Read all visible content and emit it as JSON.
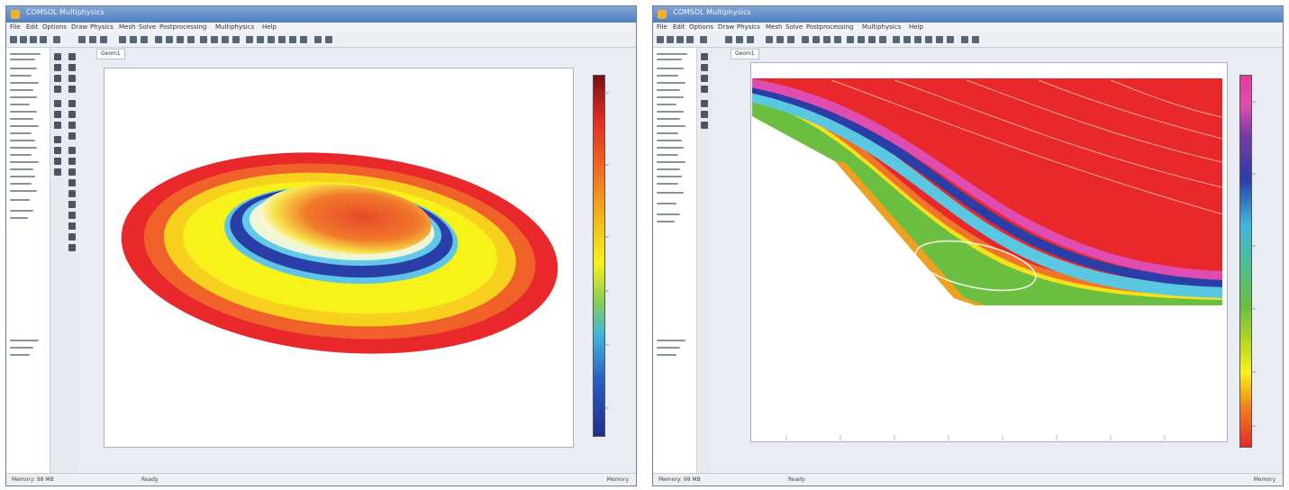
{
  "windows": [
    {
      "title": "COMSOL Multiphysics",
      "menu": [
        "File",
        "Edit",
        "Options",
        "Draw",
        "Physics",
        "Mesh",
        "Solve",
        "Postprocessing",
        "Multiphysics",
        "Help"
      ],
      "tab": "Geom1",
      "status_left": "Memory: 98 MB",
      "status_mid": "Ready",
      "status_right": "Memory"
    },
    {
      "title": "COMSOL Multiphysics",
      "menu": [
        "File",
        "Edit",
        "Options",
        "Draw",
        "Physics",
        "Mesh",
        "Solve",
        "Postprocessing",
        "Multiphysics",
        "Help"
      ],
      "tab": "Geom1",
      "status_left": "Memory: 98 MB",
      "status_mid": "Ready",
      "status_right": "Memory"
    }
  ],
  "plots": {
    "left": {
      "type": "3d-surface",
      "colormap": "jet"
    },
    "right": {
      "type": "2d-surface-contour",
      "colormap": "rainbow"
    }
  },
  "colors": {
    "red": "#e8282a",
    "yellow": "#f7f21a",
    "blue": "#2a3ea8",
    "green": "#6abf40",
    "magenta": "#e04db0"
  }
}
